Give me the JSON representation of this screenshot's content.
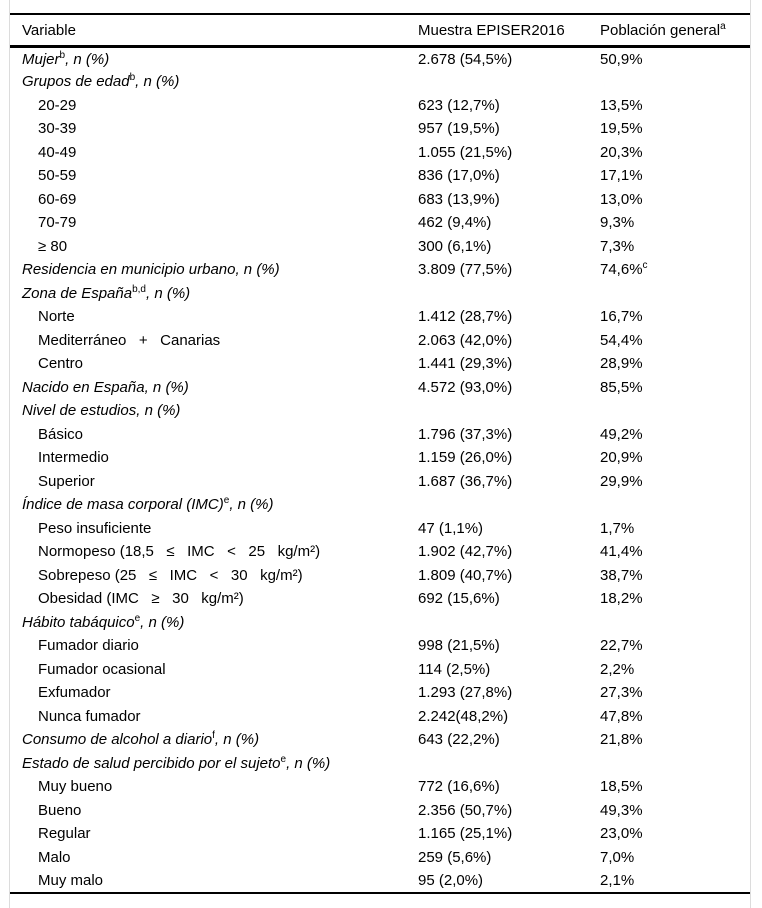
{
  "table": {
    "columns": [
      {
        "label": "Variable",
        "sup": ""
      },
      {
        "label": "Muestra EPISER2016",
        "sup": ""
      },
      {
        "label": "Población general",
        "sup": "a"
      }
    ],
    "rows": [
      {
        "label": "Mujer",
        "sup": "b",
        "tail": ", n (%)",
        "italic": true,
        "indent": false,
        "sample": "2.678 (54,5%)",
        "population": "50,9%",
        "population_sup": ""
      },
      {
        "label": "Grupos de edad",
        "sup": "b",
        "tail": ", n (%)",
        "italic": true,
        "indent": false,
        "sample": "",
        "population": "",
        "population_sup": ""
      },
      {
        "label": "20-29",
        "sup": "",
        "tail": "",
        "italic": false,
        "indent": true,
        "sample": "623 (12,7%)",
        "population": "13,5%",
        "population_sup": ""
      },
      {
        "label": "30-39",
        "sup": "",
        "tail": "",
        "italic": false,
        "indent": true,
        "sample": "957 (19,5%)",
        "population": "19,5%",
        "population_sup": ""
      },
      {
        "label": "40-49",
        "sup": "",
        "tail": "",
        "italic": false,
        "indent": true,
        "sample": "1.055 (21,5%)",
        "population": "20,3%",
        "population_sup": ""
      },
      {
        "label": "50-59",
        "sup": "",
        "tail": "",
        "italic": false,
        "indent": true,
        "sample": "836 (17,0%)",
        "population": "17,1%",
        "population_sup": ""
      },
      {
        "label": "60-69",
        "sup": "",
        "tail": "",
        "italic": false,
        "indent": true,
        "sample": "683 (13,9%)",
        "population": "13,0%",
        "population_sup": ""
      },
      {
        "label": "70-79",
        "sup": "",
        "tail": "",
        "italic": false,
        "indent": true,
        "sample": "462 (9,4%)",
        "population": "9,3%",
        "population_sup": ""
      },
      {
        "label": "≥ 80",
        "sup": "",
        "tail": "",
        "italic": false,
        "indent": true,
        "sample": "300 (6,1%)",
        "population": "7,3%",
        "population_sup": ""
      },
      {
        "label": "Residencia en municipio urbano",
        "sup": "",
        "tail": ", n (%)",
        "italic": true,
        "indent": false,
        "sample": "3.809 (77,5%)",
        "population": "74,6%",
        "population_sup": "c"
      },
      {
        "label": "Zona de España",
        "sup": "b,d",
        "tail": ", n (%)",
        "italic": true,
        "indent": false,
        "sample": "",
        "population": "",
        "population_sup": ""
      },
      {
        "label": "Norte",
        "sup": "",
        "tail": "",
        "italic": false,
        "indent": true,
        "sample": "1.412 (28,7%)",
        "population": "16,7%",
        "population_sup": ""
      },
      {
        "label": "Mediterráneo   +   Canarias",
        "sup": "",
        "tail": "",
        "italic": false,
        "indent": true,
        "sample": "2.063 (42,0%)",
        "population": "54,4%",
        "population_sup": ""
      },
      {
        "label": "Centro",
        "sup": "",
        "tail": "",
        "italic": false,
        "indent": true,
        "sample": "1.441 (29,3%)",
        "population": "28,9%",
        "population_sup": ""
      },
      {
        "label": "Nacido en España",
        "sup": "",
        "tail": ", n (%)",
        "italic": true,
        "indent": false,
        "sample": "4.572 (93,0%)",
        "population": "85,5%",
        "population_sup": ""
      },
      {
        "label": "Nivel de estudios",
        "sup": "",
        "tail": ", n (%)",
        "italic": true,
        "indent": false,
        "sample": "",
        "population": "",
        "population_sup": ""
      },
      {
        "label": "Básico",
        "sup": "",
        "tail": "",
        "italic": false,
        "indent": true,
        "sample": "1.796 (37,3%)",
        "population": "49,2%",
        "population_sup": ""
      },
      {
        "label": "Intermedio",
        "sup": "",
        "tail": "",
        "italic": false,
        "indent": true,
        "sample": "1.159 (26,0%)",
        "population": "20,9%",
        "population_sup": ""
      },
      {
        "label": "Superior",
        "sup": "",
        "tail": "",
        "italic": false,
        "indent": true,
        "sample": "1.687 (36,7%)",
        "population": "29,9%",
        "population_sup": ""
      },
      {
        "label": "Índice de masa corporal (IMC)",
        "sup": "e",
        "tail": ", n (%)",
        "italic": true,
        "indent": false,
        "sample": "",
        "population": "",
        "population_sup": ""
      },
      {
        "label": "Peso insuficiente",
        "sup": "",
        "tail": "",
        "italic": false,
        "indent": true,
        "sample": "47 (1,1%)",
        "population": "1,7%",
        "population_sup": ""
      },
      {
        "label": "Normopeso (18,5   ≤   IMC   <   25   kg/m²)",
        "sup": "",
        "tail": "",
        "italic": false,
        "indent": true,
        "sample": "1.902 (42,7%)",
        "population": "41,4%",
        "population_sup": ""
      },
      {
        "label": "Sobrepeso (25   ≤   IMC   <   30   kg/m²)",
        "sup": "",
        "tail": "",
        "italic": false,
        "indent": true,
        "sample": "1.809 (40,7%)",
        "population": "38,7%",
        "population_sup": ""
      },
      {
        "label": "Obesidad (IMC   ≥   30   kg/m²)",
        "sup": "",
        "tail": "",
        "italic": false,
        "indent": true,
        "sample": "692 (15,6%)",
        "population": "18,2%",
        "population_sup": ""
      },
      {
        "label": "Hábito tabáquico",
        "sup": "e",
        "tail": ", n (%)",
        "italic": true,
        "indent": false,
        "sample": "",
        "population": "",
        "population_sup": ""
      },
      {
        "label": "Fumador diario",
        "sup": "",
        "tail": "",
        "italic": false,
        "indent": true,
        "sample": "998 (21,5%)",
        "population": "22,7%",
        "population_sup": ""
      },
      {
        "label": "Fumador ocasional",
        "sup": "",
        "tail": "",
        "italic": false,
        "indent": true,
        "sample": "114 (2,5%)",
        "population": "2,2%",
        "population_sup": ""
      },
      {
        "label": "Exfumador",
        "sup": "",
        "tail": "",
        "italic": false,
        "indent": true,
        "sample": "1.293 (27,8%)",
        "population": "27,3%",
        "population_sup": ""
      },
      {
        "label": "Nunca fumador",
        "sup": "",
        "tail": "",
        "italic": false,
        "indent": true,
        "sample": "2.242(48,2%)",
        "population": "47,8%",
        "population_sup": ""
      },
      {
        "label": "Consumo de alcohol a diario",
        "sup": "f",
        "tail": ", n (%)",
        "italic": true,
        "indent": false,
        "sample": "643 (22,2%)",
        "population": "21,8%",
        "population_sup": ""
      },
      {
        "label": "Estado de salud percibido por el sujeto",
        "sup": "e",
        "tail": ", n (%)",
        "italic": true,
        "indent": false,
        "sample": "",
        "population": "",
        "population_sup": ""
      },
      {
        "label": "Muy bueno",
        "sup": "",
        "tail": "",
        "italic": false,
        "indent": true,
        "sample": "772 (16,6%)",
        "population": "18,5%",
        "population_sup": ""
      },
      {
        "label": "Bueno",
        "sup": "",
        "tail": "",
        "italic": false,
        "indent": true,
        "sample": "2.356 (50,7%)",
        "population": "49,3%",
        "population_sup": ""
      },
      {
        "label": "Regular",
        "sup": "",
        "tail": "",
        "italic": false,
        "indent": true,
        "sample": "1.165 (25,1%)",
        "population": "23,0%",
        "population_sup": ""
      },
      {
        "label": "Malo",
        "sup": "",
        "tail": "",
        "italic": false,
        "indent": true,
        "sample": "259 (5,6%)",
        "population": "7,0%",
        "population_sup": ""
      },
      {
        "label": "Muy malo",
        "sup": "",
        "tail": "",
        "italic": false,
        "indent": true,
        "sample": "95 (2,0%)",
        "population": "2,1%",
        "population_sup": ""
      }
    ]
  }
}
